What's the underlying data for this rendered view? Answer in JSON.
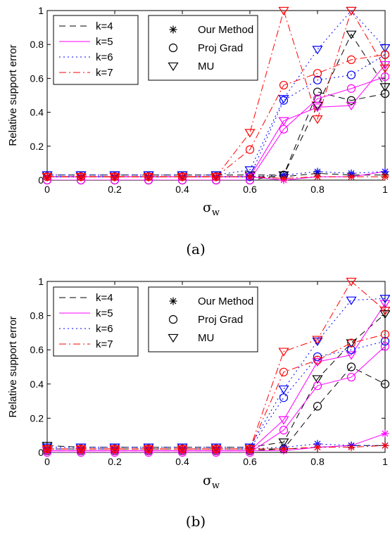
{
  "chart_data": [
    {
      "type": "line",
      "caption": "(a)",
      "xlabel_main": "σ",
      "xlabel_sub": "w",
      "ylabel": "Relative support error",
      "xlim": [
        0,
        1
      ],
      "ylim": [
        0,
        1
      ],
      "xticks": [
        "0",
        "0.2",
        "0.4",
        "0.6",
        "0.8",
        "1"
      ],
      "yticks": [
        "0",
        "0.2",
        "0.4",
        "0.6",
        "0.8",
        "1"
      ],
      "x": [
        0,
        0.1,
        0.2,
        0.3,
        0.4,
        0.5,
        0.6,
        0.7,
        0.8,
        0.9,
        1.0
      ],
      "legend_k": [
        {
          "label": "k=4",
          "color": "#000000",
          "dash": "9,6"
        },
        {
          "label": "k=5",
          "color": "#ff00ff",
          "dash": ""
        },
        {
          "label": "k=6",
          "color": "#0000ff",
          "dash": "2,4"
        },
        {
          "label": "k=7",
          "color": "#ff0000",
          "dash": "10,4,2,4"
        }
      ],
      "legend_methods": [
        {
          "label": "Our Method",
          "marker": "star"
        },
        {
          "label": "Proj Grad",
          "marker": "circle"
        },
        {
          "label": "MU",
          "marker": "triangle"
        }
      ],
      "series": [
        {
          "k": "k=4",
          "method": "Our Method",
          "marker": "star",
          "values": [
            0.02,
            0.02,
            0.02,
            0.02,
            0.02,
            0.02,
            0.02,
            0.02,
            0.04,
            0.03,
            0.03
          ]
        },
        {
          "k": "k=4",
          "method": "Proj Grad",
          "marker": "circle",
          "values": [
            0.0,
            0.0,
            0.0,
            0.0,
            0.0,
            0.0,
            0.0,
            0.03,
            0.52,
            0.47,
            0.51
          ]
        },
        {
          "k": "k=4",
          "method": "MU",
          "marker": "triangle",
          "values": [
            0.03,
            0.03,
            0.03,
            0.03,
            0.03,
            0.03,
            0.03,
            0.03,
            0.44,
            0.86,
            0.55
          ]
        },
        {
          "k": "k=5",
          "method": "Our Method",
          "marker": "star",
          "values": [
            0.02,
            0.02,
            0.02,
            0.02,
            0.02,
            0.02,
            0.02,
            0.0,
            0.02,
            0.02,
            0.05
          ]
        },
        {
          "k": "k=5",
          "method": "Proj Grad",
          "marker": "circle",
          "values": [
            0.0,
            0.0,
            0.0,
            0.0,
            0.0,
            0.0,
            0.0,
            0.3,
            0.48,
            0.54,
            0.61
          ]
        },
        {
          "k": "k=5",
          "method": "MU",
          "marker": "triangle",
          "values": [
            0.02,
            0.02,
            0.02,
            0.02,
            0.02,
            0.02,
            0.02,
            0.35,
            0.43,
            0.44,
            0.68
          ]
        },
        {
          "k": "k=6",
          "method": "Our Method",
          "marker": "star",
          "values": [
            0.02,
            0.02,
            0.02,
            0.02,
            0.02,
            0.02,
            0.02,
            0.03,
            0.05,
            0.04,
            0.05
          ]
        },
        {
          "k": "k=6",
          "method": "Proj Grad",
          "marker": "circle",
          "values": [
            0.02,
            0.02,
            0.02,
            0.02,
            0.02,
            0.02,
            0.02,
            0.47,
            0.59,
            0.62,
            0.74
          ]
        },
        {
          "k": "k=6",
          "method": "MU",
          "marker": "triangle",
          "values": [
            0.03,
            0.03,
            0.03,
            0.03,
            0.03,
            0.03,
            0.06,
            0.48,
            0.77,
            1.0,
            0.78
          ]
        },
        {
          "k": "k=7",
          "method": "Our Method",
          "marker": "star",
          "values": [
            0.02,
            0.02,
            0.02,
            0.02,
            0.02,
            0.02,
            0.02,
            0.01,
            0.02,
            0.02,
            0.02
          ]
        },
        {
          "k": "k=7",
          "method": "Proj Grad",
          "marker": "circle",
          "values": [
            0.02,
            0.02,
            0.02,
            0.02,
            0.02,
            0.02,
            0.18,
            0.56,
            0.63,
            0.71,
            0.74
          ]
        },
        {
          "k": "k=7",
          "method": "MU",
          "marker": "triangle",
          "values": [
            0.02,
            0.02,
            0.02,
            0.02,
            0.02,
            0.02,
            0.28,
            1.0,
            0.36,
            1.0,
            0.66
          ]
        }
      ]
    },
    {
      "type": "line",
      "caption": "(b)",
      "xlabel_main": "σ",
      "xlabel_sub": "w",
      "ylabel": "Relative support error",
      "xlim": [
        0,
        1
      ],
      "ylim": [
        0,
        1
      ],
      "xticks": [
        "0",
        "0.2",
        "0.4",
        "0.6",
        "0.8",
        "1"
      ],
      "yticks": [
        "0",
        "0.2",
        "0.4",
        "0.6",
        "0.8",
        "1"
      ],
      "x": [
        0,
        0.1,
        0.2,
        0.3,
        0.4,
        0.5,
        0.6,
        0.7,
        0.8,
        0.9,
        1.0
      ],
      "legend_k": [
        {
          "label": "k=4",
          "color": "#000000",
          "dash": "9,6"
        },
        {
          "label": "k=5",
          "color": "#ff00ff",
          "dash": ""
        },
        {
          "label": "k=6",
          "color": "#0000ff",
          "dash": "2,4"
        },
        {
          "label": "k=7",
          "color": "#ff0000",
          "dash": "10,4,2,4"
        }
      ],
      "legend_methods": [
        {
          "label": "Our Method",
          "marker": "star"
        },
        {
          "label": "Proj Grad",
          "marker": "circle"
        },
        {
          "label": "MU",
          "marker": "triangle"
        }
      ],
      "series": [
        {
          "k": "k=4",
          "method": "Our Method",
          "marker": "star",
          "values": [
            0.02,
            0.02,
            0.02,
            0.02,
            0.02,
            0.02,
            0.02,
            0.02,
            0.03,
            0.04,
            0.04
          ]
        },
        {
          "k": "k=4",
          "method": "Proj Grad",
          "marker": "circle",
          "values": [
            0.01,
            0.01,
            0.01,
            0.01,
            0.01,
            0.01,
            0.01,
            0.02,
            0.27,
            0.5,
            0.4
          ]
        },
        {
          "k": "k=4",
          "method": "MU",
          "marker": "triangle",
          "values": [
            0.04,
            0.03,
            0.03,
            0.03,
            0.03,
            0.03,
            0.03,
            0.06,
            0.43,
            0.64,
            0.81
          ]
        },
        {
          "k": "k=5",
          "method": "Our Method",
          "marker": "star",
          "values": [
            0.01,
            0.01,
            0.01,
            0.01,
            0.01,
            0.01,
            0.01,
            0.01,
            0.03,
            0.04,
            0.11
          ]
        },
        {
          "k": "k=5",
          "method": "Proj Grad",
          "marker": "circle",
          "values": [
            0.0,
            0.0,
            0.0,
            0.0,
            0.0,
            0.0,
            0.0,
            0.13,
            0.39,
            0.44,
            0.62
          ]
        },
        {
          "k": "k=5",
          "method": "MU",
          "marker": "triangle",
          "values": [
            0.01,
            0.01,
            0.01,
            0.01,
            0.01,
            0.01,
            0.01,
            0.19,
            0.53,
            0.57,
            0.87
          ]
        },
        {
          "k": "k=6",
          "method": "Our Method",
          "marker": "star",
          "values": [
            0.02,
            0.02,
            0.02,
            0.02,
            0.02,
            0.02,
            0.02,
            0.03,
            0.05,
            0.04,
            0.04
          ]
        },
        {
          "k": "k=6",
          "method": "Proj Grad",
          "marker": "circle",
          "values": [
            0.02,
            0.02,
            0.02,
            0.02,
            0.02,
            0.02,
            0.02,
            0.32,
            0.56,
            0.6,
            0.65
          ]
        },
        {
          "k": "k=6",
          "method": "MU",
          "marker": "triangle",
          "values": [
            0.03,
            0.03,
            0.03,
            0.03,
            0.03,
            0.03,
            0.03,
            0.37,
            0.65,
            0.89,
            0.9
          ]
        },
        {
          "k": "k=7",
          "method": "Our Method",
          "marker": "star",
          "values": [
            0.02,
            0.02,
            0.02,
            0.02,
            0.02,
            0.02,
            0.02,
            0.02,
            0.03,
            0.03,
            0.04
          ]
        },
        {
          "k": "k=7",
          "method": "Proj Grad",
          "marker": "circle",
          "values": [
            0.02,
            0.02,
            0.02,
            0.02,
            0.02,
            0.02,
            0.02,
            0.47,
            0.54,
            0.64,
            0.69
          ]
        },
        {
          "k": "k=7",
          "method": "MU",
          "marker": "triangle",
          "values": [
            0.02,
            0.02,
            0.02,
            0.02,
            0.02,
            0.02,
            0.02,
            0.59,
            0.66,
            1.0,
            0.83
          ]
        }
      ]
    }
  ]
}
